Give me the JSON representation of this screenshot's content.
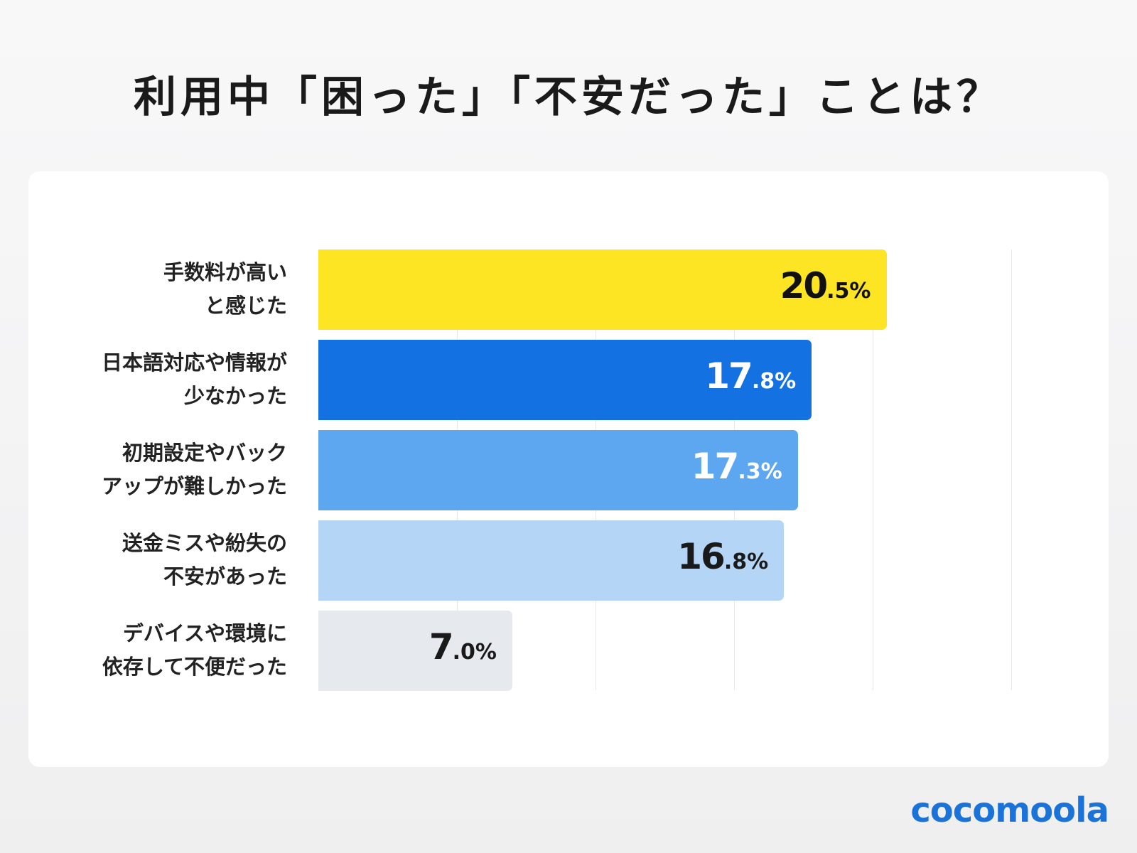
{
  "title": "利用中「困った」「不安だった」ことは？",
  "logo": "cocomoola",
  "chart_data": {
    "type": "bar",
    "orientation": "horizontal",
    "title": "利用中「困った」「不安だった」ことは？",
    "categories": [
      "手数料が高い\nと感じた",
      "日本語対応や情報が\n少なかった",
      "初期設定やバック\nアップが難しかった",
      "送金ミスや紛失の\n不安があった",
      "デバイスや環境に\n依存して不便だった"
    ],
    "values": [
      20.5,
      17.8,
      17.3,
      16.8,
      7.0
    ],
    "value_labels": [
      {
        "int": "20",
        "dec": ".5%"
      },
      {
        "int": "17",
        "dec": ".8%"
      },
      {
        "int": "17",
        "dec": ".3%"
      },
      {
        "int": "16",
        "dec": ".8%"
      },
      {
        "int": "7",
        "dec": ".0%"
      }
    ],
    "bar_colors": [
      "#fde523",
      "#1371e2",
      "#5ca7f0",
      "#b5d5f7",
      "#e6e9ee"
    ],
    "label_colors": [
      "#111111",
      "#ffffff",
      "#ffffff",
      "#1a1a1a",
      "#1a1a1a"
    ],
    "xlim": [
      0,
      25
    ],
    "grid": true,
    "grid_step": 5
  }
}
